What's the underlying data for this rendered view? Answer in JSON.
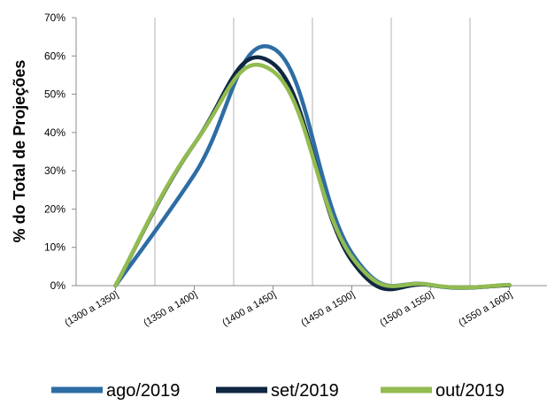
{
  "chart_data": {
    "type": "line",
    "title": "",
    "xlabel": "",
    "ylabel": "% do Total de Projeções",
    "categories": [
      "(1300 a 1350]",
      "(1350 a 1400]",
      "(1400 a 1450]",
      "(1450 a 1500]",
      "(1500 a 1550]",
      "(1550 a 1600]"
    ],
    "ylim": [
      0,
      70
    ],
    "yticks": [
      0,
      10,
      20,
      30,
      40,
      50,
      60,
      70
    ],
    "ytick_labels": [
      "0%",
      "10%",
      "20%",
      "30%",
      "40%",
      "50%",
      "60%",
      "70%"
    ],
    "grid": "vertical",
    "legend_position": "bottom",
    "series": [
      {
        "name": "ago/2019",
        "color": "#2e6da4",
        "values": [
          0,
          29,
          62,
          8.5,
          0.2,
          0.2
        ]
      },
      {
        "name": "set/2019",
        "color": "#0f2741",
        "values": [
          0,
          37,
          58,
          6.5,
          0.1,
          0.1
        ]
      },
      {
        "name": "out/2019",
        "color": "#92bb50",
        "values": [
          0,
          37,
          56,
          7.5,
          0.2,
          0.2
        ]
      }
    ]
  }
}
